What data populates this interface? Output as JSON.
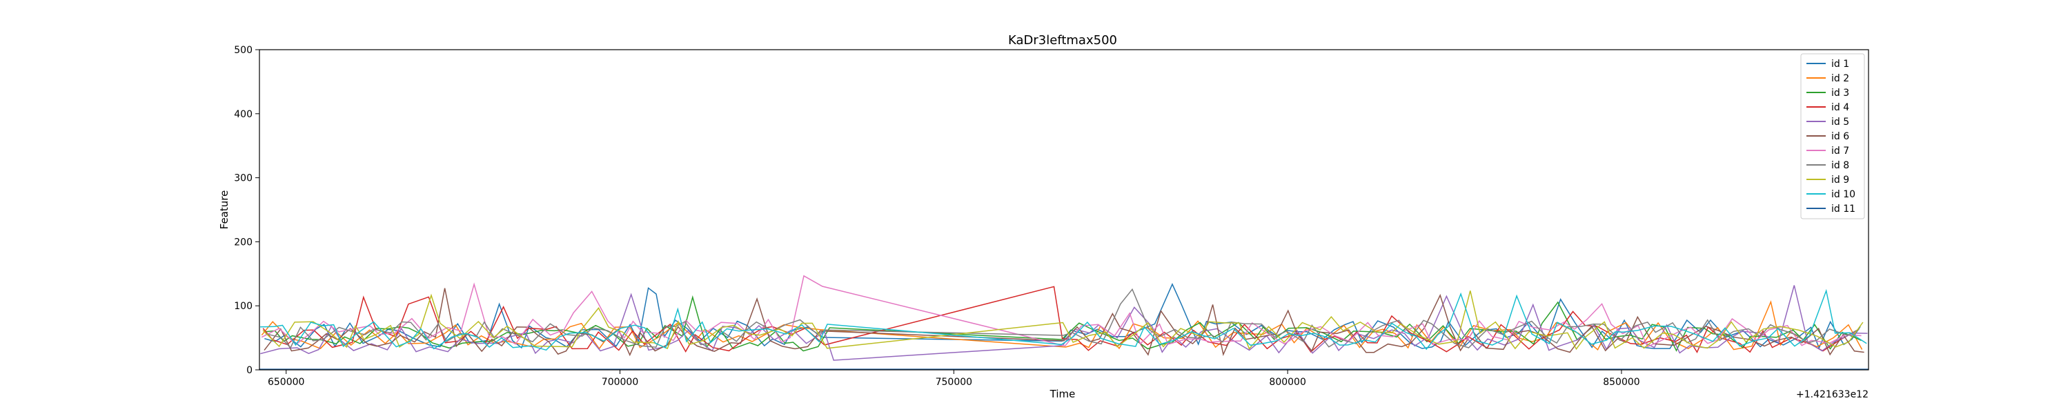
{
  "chart_data": {
    "type": "line",
    "title": "KaDr3leftmax500",
    "xlabel": "Time",
    "ylabel": "Feature",
    "x_offset_label": "+1.421633e12",
    "xlim": [
      646000,
      887000
    ],
    "ylim": [
      0,
      500
    ],
    "xticks": [
      650000,
      700000,
      750000,
      800000,
      850000
    ],
    "yticks": [
      0,
      100,
      200,
      300,
      400,
      500
    ],
    "grid": false,
    "legend_position": "top-right",
    "series": [
      {
        "name": "id 1",
        "color": "#1f77b4"
      },
      {
        "name": "id 2",
        "color": "#ff7f0e"
      },
      {
        "name": "id 3",
        "color": "#2ca02c"
      },
      {
        "name": "id 4",
        "color": "#d62728"
      },
      {
        "name": "id 5",
        "color": "#9467bd"
      },
      {
        "name": "id 6",
        "color": "#8c564b"
      },
      {
        "name": "id 7",
        "color": "#e377c2"
      },
      {
        "name": "id 8",
        "color": "#7f7f7f"
      },
      {
        "name": "id 9",
        "color": "#bcbd22"
      },
      {
        "name": "id 10",
        "color": "#17becf"
      },
      {
        "name": "id 11",
        "color": "#1f5f9f"
      }
    ]
  }
}
